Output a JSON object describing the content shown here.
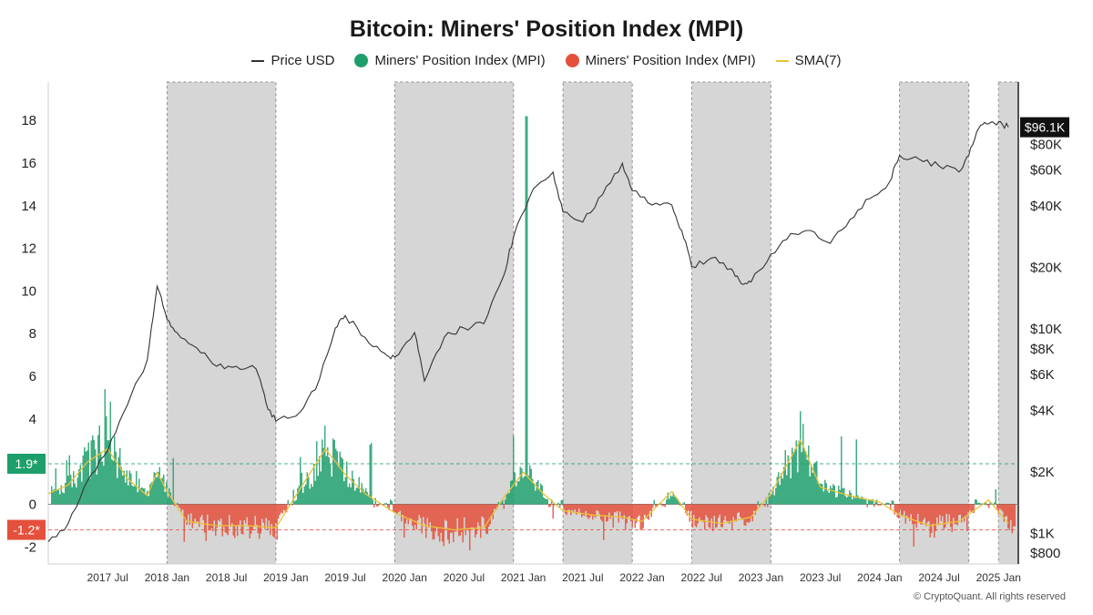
{
  "chart_data": {
    "type": "line",
    "title": "Bitcoin: Miners' Position Index (MPI)",
    "legend": {
      "placement": "top-center",
      "entries": [
        {
          "label": "Price USD",
          "color": "#333333",
          "kind": "line"
        },
        {
          "label": "Miners' Position Index (MPI)",
          "color": "#1e9e6b",
          "kind": "dot"
        },
        {
          "label": "Miners' Position Index (MPI)",
          "color": "#e4503b",
          "kind": "dot"
        },
        {
          "label": "SMA(7)",
          "color": "#e9c33a",
          "kind": "line"
        }
      ]
    },
    "x_ticks": [
      "2017 Jul",
      "2018 Jan",
      "2018 Jul",
      "2019 Jan",
      "2019 Jul",
      "2020 Jan",
      "2020 Jul",
      "2021 Jan",
      "2021 Jul",
      "2022 Jan",
      "2022 Jul",
      "2023 Jan",
      "2023 Jul",
      "2024 Jan",
      "2024 Jul",
      "2025 Jan"
    ],
    "x_range": [
      "2017-01",
      "2025-03"
    ],
    "left_axis": {
      "ylim": [
        -2.8,
        19.8
      ],
      "ticks": [
        "-2",
        "0",
        "2",
        "4",
        "6",
        "8",
        "10",
        "12",
        "14",
        "16",
        "18"
      ]
    },
    "right_axis": {
      "scale": "log",
      "ylim": [
        700,
        160000
      ],
      "ticks": [
        {
          "value": 800,
          "label": "$800"
        },
        {
          "value": 1000,
          "label": "$1K"
        },
        {
          "value": 2000,
          "label": "$2K"
        },
        {
          "value": 4000,
          "label": "$4K"
        },
        {
          "value": 6000,
          "label": "$6K"
        },
        {
          "value": 8000,
          "label": "$8K"
        },
        {
          "value": 10000,
          "label": "$10K"
        },
        {
          "value": 20000,
          "label": "$20K"
        },
        {
          "value": 40000,
          "label": "$40K"
        },
        {
          "value": 60000,
          "label": "$60K"
        },
        {
          "value": 80000,
          "label": "$80K"
        }
      ]
    },
    "current_price": {
      "value": 96100,
      "label": "$96.1K"
    },
    "reference_lines": [
      {
        "value": 1.9,
        "label": "1.9*",
        "color": "#1e9e6b"
      },
      {
        "value": -1.2,
        "label": "-1.2*",
        "color": "#e4503b"
      }
    ],
    "shaded_periods": [
      [
        "2018-01",
        "2018-12"
      ],
      [
        "2019-12",
        "2020-12"
      ],
      [
        "2021-05",
        "2021-12"
      ],
      [
        "2022-06",
        "2023-02"
      ],
      [
        "2024-03",
        "2024-10"
      ],
      [
        "2025-01",
        "2025-03"
      ]
    ],
    "price_usd": [
      [
        "2017-01",
        900
      ],
      [
        "2017-03",
        1100
      ],
      [
        "2017-05",
        1800
      ],
      [
        "2017-07",
        2500
      ],
      [
        "2017-09",
        4200
      ],
      [
        "2017-11",
        7000
      ],
      [
        "2017-12",
        16000
      ],
      [
        "2018-01",
        11000
      ],
      [
        "2018-02",
        9500
      ],
      [
        "2018-04",
        8000
      ],
      [
        "2018-06",
        6500
      ],
      [
        "2018-08",
        6500
      ],
      [
        "2018-10",
        6300
      ],
      [
        "2018-11",
        4300
      ],
      [
        "2018-12",
        3500
      ],
      [
        "2019-02",
        3700
      ],
      [
        "2019-04",
        5000
      ],
      [
        "2019-06",
        10000
      ],
      [
        "2019-07",
        11500
      ],
      [
        "2019-09",
        9000
      ],
      [
        "2019-11",
        7500
      ],
      [
        "2019-12",
        7200
      ],
      [
        "2020-02",
        9500
      ],
      [
        "2020-03",
        5500
      ],
      [
        "2020-05",
        9000
      ],
      [
        "2020-07",
        10000
      ],
      [
        "2020-09",
        10500
      ],
      [
        "2020-11",
        18000
      ],
      [
        "2020-12",
        28000
      ],
      [
        "2021-02",
        48000
      ],
      [
        "2021-04",
        58000
      ],
      [
        "2021-05",
        37000
      ],
      [
        "2021-07",
        33000
      ],
      [
        "2021-09",
        45000
      ],
      [
        "2021-11",
        64000
      ],
      [
        "2021-12",
        47000
      ],
      [
        "2022-02",
        40000
      ],
      [
        "2022-04",
        40000
      ],
      [
        "2022-05",
        30000
      ],
      [
        "2022-06",
        20000
      ],
      [
        "2022-08",
        22000
      ],
      [
        "2022-10",
        19500
      ],
      [
        "2022-11",
        16500
      ],
      [
        "2022-12",
        16800
      ],
      [
        "2023-02",
        23000
      ],
      [
        "2023-04",
        29000
      ],
      [
        "2023-06",
        30000
      ],
      [
        "2023-08",
        26000
      ],
      [
        "2023-10",
        34000
      ],
      [
        "2023-12",
        43000
      ],
      [
        "2024-02",
        52000
      ],
      [
        "2024-03",
        70000
      ],
      [
        "2024-05",
        67000
      ],
      [
        "2024-07",
        62000
      ],
      [
        "2024-09",
        58000
      ],
      [
        "2024-10",
        70000
      ],
      [
        "2024-11",
        95000
      ],
      [
        "2024-12",
        100000
      ],
      [
        "2025-01",
        102000
      ],
      [
        "2025-02",
        96100
      ]
    ],
    "mpi_sma7": [
      [
        "2017-01",
        0.5
      ],
      [
        "2017-03",
        0.9
      ],
      [
        "2017-05",
        2.0
      ],
      [
        "2017-07",
        2.6
      ],
      [
        "2017-09",
        1.2
      ],
      [
        "2017-11",
        0.4
      ],
      [
        "2017-12",
        1.5
      ],
      [
        "2018-01",
        0.6
      ],
      [
        "2018-03",
        -0.8
      ],
      [
        "2018-06",
        -1.0
      ],
      [
        "2018-09",
        -1.0
      ],
      [
        "2018-12",
        -1.1
      ],
      [
        "2019-02",
        0.4
      ],
      [
        "2019-05",
        2.6
      ],
      [
        "2019-07",
        1.4
      ],
      [
        "2019-09",
        0.5
      ],
      [
        "2019-12",
        -0.4
      ],
      [
        "2020-03",
        -1.0
      ],
      [
        "2020-06",
        -1.2
      ],
      [
        "2020-09",
        -1.1
      ],
      [
        "2020-11",
        0.3
      ],
      [
        "2021-01",
        1.5
      ],
      [
        "2021-03",
        0.5
      ],
      [
        "2021-05",
        -0.3
      ],
      [
        "2021-08",
        -0.5
      ],
      [
        "2021-11",
        -0.6
      ],
      [
        "2022-01",
        -0.8
      ],
      [
        "2022-04",
        0.6
      ],
      [
        "2022-06",
        -0.7
      ],
      [
        "2022-09",
        -0.9
      ],
      [
        "2022-12",
        -0.6
      ],
      [
        "2023-02",
        0.5
      ],
      [
        "2023-05",
        3.0
      ],
      [
        "2023-07",
        0.8
      ],
      [
        "2023-10",
        0.4
      ],
      [
        "2024-01",
        0.1
      ],
      [
        "2024-03",
        -0.5
      ],
      [
        "2024-06",
        -1.0
      ],
      [
        "2024-09",
        -0.8
      ],
      [
        "2024-12",
        0.2
      ],
      [
        "2025-02",
        -0.9
      ]
    ]
  }
}
